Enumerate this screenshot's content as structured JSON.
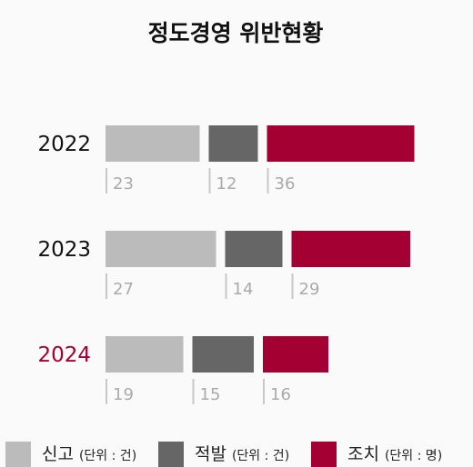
{
  "chart_data": {
    "type": "bar",
    "title": "정도경영 위반현황",
    "categories": [
      "2022",
      "2023",
      "2024"
    ],
    "highlight_category": "2024",
    "series": [
      {
        "name": "신고",
        "unit": "(단위 : 건)",
        "values": [
          23,
          27,
          19
        ]
      },
      {
        "name": "적발",
        "unit": "(단위 : 건)",
        "values": [
          12,
          14,
          15
        ]
      },
      {
        "name": "조치",
        "unit": "(단위 : 명)",
        "values": [
          36,
          29,
          16
        ]
      }
    ],
    "xlabel": "",
    "ylabel": "",
    "grid": false,
    "legend_position": "bottom"
  },
  "colors": {
    "series": [
      "#bbbbbb",
      "#666666",
      "#a50034"
    ],
    "highlight_year": "#a50034",
    "year": "#111111",
    "value_label": "#aaaaaa"
  }
}
